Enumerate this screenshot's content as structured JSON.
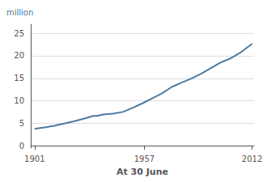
{
  "chart_data": {
    "type": "line",
    "ylabel": "million",
    "xlabel": "At 30 June",
    "x": [
      1901,
      1906,
      1911,
      1916,
      1921,
      1926,
      1931,
      1933,
      1936,
      1941,
      1946,
      1951,
      1956,
      1961,
      1966,
      1971,
      1976,
      1981,
      1986,
      1991,
      1996,
      2001,
      2006,
      2011,
      2012
    ],
    "values": [
      3.77,
      4.08,
      4.46,
      4.94,
      5.44,
      6.03,
      6.63,
      6.63,
      6.96,
      7.14,
      7.52,
      8.42,
      9.43,
      10.55,
      11.65,
      13.07,
      14.03,
      14.93,
      16.02,
      17.28,
      18.53,
      19.41,
      20.7,
      22.34,
      22.68
    ],
    "color": "#4d7aa0",
    "xlim": [
      1899,
      2013
    ],
    "xticks": [
      1901,
      1957,
      2012
    ],
    "ylim": [
      -0.5,
      27
    ],
    "yticks": [
      0,
      5,
      10,
      15,
      20,
      25
    ],
    "grid": true
  }
}
